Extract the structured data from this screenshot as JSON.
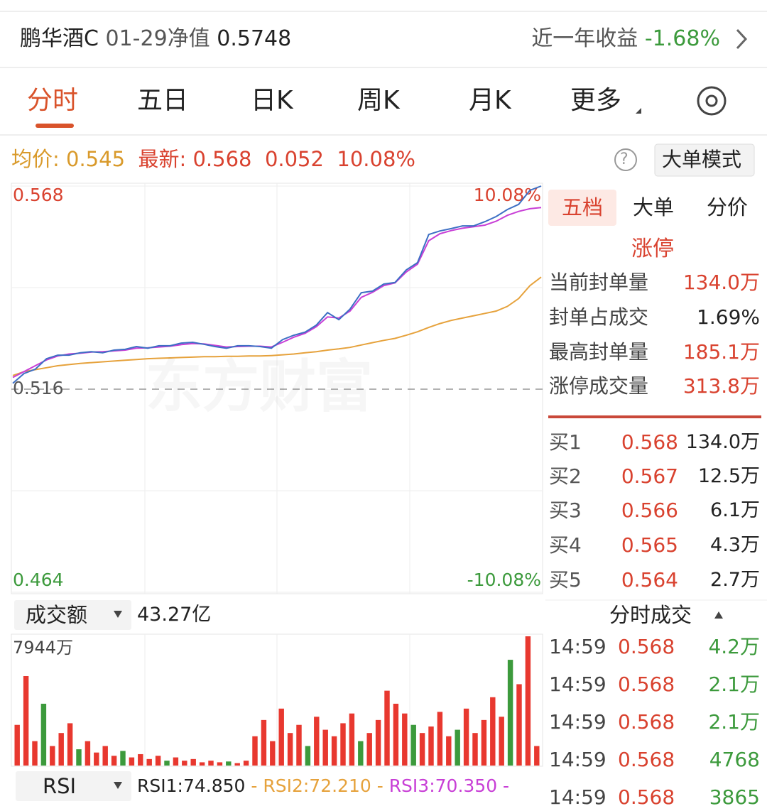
{
  "header": {
    "name": "鹏华酒C",
    "date": "01-29",
    "nav_label": "净值",
    "nav": "0.5748",
    "return_label": "近一年收益",
    "return": "-1.68%"
  },
  "tabs": [
    "分时",
    "五日",
    "日K",
    "周K",
    "月K",
    "更多"
  ],
  "stats": {
    "avg_label": "均价:",
    "avg": "0.545",
    "latest_label": "最新:",
    "latest": "0.568",
    "change": "0.052",
    "pct": "10.08%",
    "help": "?",
    "mode_button": "大单模式"
  },
  "watermark": "东方财富",
  "chart_data": [
    {
      "type": "line",
      "categories": [
        null,
        null,
        null,
        null,
        null,
        null,
        null,
        null,
        null,
        null,
        null,
        null,
        null,
        null,
        null,
        null,
        null,
        null,
        null,
        null,
        null,
        null,
        null,
        null,
        null,
        null,
        null,
        null,
        null,
        null,
        null,
        null,
        null,
        null,
        null,
        null,
        null,
        null,
        null,
        null,
        null,
        null,
        null,
        null,
        null,
        null,
        null,
        null
      ],
      "series": [
        {
          "color": "#3d6fc4",
          "values": [
            0.5175,
            0.52,
            0.5211,
            0.5238,
            0.5247,
            0.5247,
            0.5253,
            0.5256,
            0.5253,
            0.526,
            0.5262,
            0.5269,
            0.5265,
            0.5271,
            0.5271,
            0.5278,
            0.528,
            0.5275,
            0.5269,
            0.5265,
            0.5271,
            0.5271,
            0.5269,
            0.5265,
            0.5287,
            0.5298,
            0.5306,
            0.5324,
            0.5356,
            0.5338,
            0.5365,
            0.5407,
            0.5411,
            0.5429,
            0.5433,
            0.5465,
            0.5484,
            0.5556,
            0.5565,
            0.5571,
            0.5578,
            0.5578,
            0.5589,
            0.5602,
            0.562,
            0.5633,
            0.5669,
            0.568
          ]
        },
        {
          "color": "#c83fd6",
          "values": [
            0.519,
            0.5205,
            0.522,
            0.5235,
            0.5245,
            0.525,
            0.5252,
            0.5255,
            0.5256,
            0.5258,
            0.526,
            0.5265,
            0.5266,
            0.5268,
            0.527,
            0.5274,
            0.5277,
            0.5276,
            0.5272,
            0.5268,
            0.5269,
            0.527,
            0.527,
            0.5268,
            0.528,
            0.5293,
            0.5303,
            0.532,
            0.5345,
            0.5342,
            0.536,
            0.5395,
            0.5408,
            0.5425,
            0.5432,
            0.546,
            0.548,
            0.554,
            0.5558,
            0.5566,
            0.5572,
            0.5576,
            0.558,
            0.559,
            0.5605,
            0.5615,
            0.5622,
            0.5625
          ]
        },
        {
          "color": "#e6a23c",
          "values": [
            0.5195,
            0.5205,
            0.521,
            0.5215,
            0.522,
            0.5223,
            0.5226,
            0.5228,
            0.523,
            0.5232,
            0.5234,
            0.5236,
            0.5238,
            0.5239,
            0.524,
            0.5241,
            0.5242,
            0.5243,
            0.5243,
            0.5244,
            0.5244,
            0.5245,
            0.5245,
            0.5246,
            0.5248,
            0.525,
            0.5253,
            0.5256,
            0.526,
            0.5263,
            0.5267,
            0.5273,
            0.5279,
            0.5285,
            0.529,
            0.5298,
            0.5307,
            0.5318,
            0.5328,
            0.5336,
            0.5342,
            0.5348,
            0.5354,
            0.536,
            0.5372,
            0.5392,
            0.5425,
            0.5447
          ]
        }
      ],
      "ylim": [
        0.464,
        0.568
      ],
      "yticks": [
        0.568,
        0.516,
        0.464
      ],
      "y2lim": [
        -10.08,
        10.08
      ],
      "y2ticks": [
        {
          "value": 10.08,
          "label": "10.08%"
        },
        {
          "value": -10.08,
          "label": "-10.08%"
        }
      ]
    },
    {
      "type": "bar",
      "values": [
        2500,
        5500,
        1500,
        3800,
        1200,
        2000,
        2600,
        1000,
        1500,
        800,
        1200,
        600,
        900,
        500,
        700,
        400,
        600,
        300,
        500,
        300,
        400,
        200,
        300,
        200,
        250,
        150,
        300,
        1800,
        2800,
        1500,
        3500,
        2000,
        2500,
        1200,
        3000,
        2200,
        1800,
        2600,
        3200,
        1500,
        2000,
        2800,
        4600,
        3800,
        3200,
        2500,
        2000,
        2400,
        3300,
        1800,
        2200,
        3500,
        2000,
        2800,
        4200,
        3000,
        6500,
        5000,
        7944,
        1200
      ],
      "colors": [
        "#e8382f",
        "#e8382f",
        "#e8382f",
        "#3c9a3c",
        "#e8382f",
        "#e8382f",
        "#e8382f",
        "#3c9a3c",
        "#e8382f",
        "#e8382f",
        "#e8382f",
        "#e8382f",
        "#3c9a3c",
        "#e8382f",
        "#e8382f",
        "#e8382f",
        "#e8382f",
        "#3c9a3c",
        "#e8382f",
        "#e8382f",
        "#e8382f",
        "#e8382f",
        "#e8382f",
        "#e8382f",
        "#3c9a3c",
        "#e8382f",
        "#e8382f",
        "#e8382f",
        "#e8382f",
        "#e8382f",
        "#e8382f",
        "#e8382f",
        "#e8382f",
        "#3c9a3c",
        "#e8382f",
        "#e8382f",
        "#e8382f",
        "#e8382f",
        "#e8382f",
        "#3c9a3c",
        "#e8382f",
        "#e8382f",
        "#e8382f",
        "#e8382f",
        "#e8382f",
        "#3c9a3c",
        "#e8382f",
        "#e8382f",
        "#e8382f",
        "#e8382f",
        "#3c9a3c",
        "#e8382f",
        "#e8382f",
        "#e8382f",
        "#e8382f",
        "#e8382f",
        "#3c9a3c",
        "#e8382f",
        "#e8382f",
        "#e8382f"
      ],
      "ylim": [
        0,
        7944
      ],
      "yticks": [
        {
          "value": 7944,
          "label": "7944万"
        }
      ]
    }
  ],
  "volume_bar": {
    "selector": "成交额",
    "total": "43.27亿"
  },
  "rsi_bar": {
    "selector": "RSI",
    "rsi1": "RSI1:74.850",
    "rsi2": "- RSI2:72.210 -",
    "rsi3": "RSI3:70.350 -"
  },
  "side_panel": {
    "tabs": [
      "五档",
      "大单",
      "分价"
    ],
    "limit_title": "涨停",
    "limit_rows": [
      [
        "当前封单量",
        "134.0万"
      ],
      [
        "封单占成交",
        "1.69%"
      ],
      [
        "最高封单量",
        "185.1万"
      ],
      [
        "涨停成交量",
        "313.8万"
      ]
    ],
    "bids": [
      [
        "买1",
        "0.568",
        "134.0万"
      ],
      [
        "买2",
        "0.567",
        "12.5万"
      ],
      [
        "买3",
        "0.566",
        "6.1万"
      ],
      [
        "买4",
        "0.565",
        "4.3万"
      ],
      [
        "买5",
        "0.564",
        "2.7万"
      ]
    ],
    "trades_title": "分时成交",
    "trades": [
      [
        "14:59",
        "0.568",
        "4.2万"
      ],
      [
        "14:59",
        "0.568",
        "2.1万"
      ],
      [
        "14:59",
        "0.568",
        "2.1万"
      ],
      [
        "14:59",
        "0.568",
        "4768"
      ],
      [
        "14:59",
        "0.568",
        "3865"
      ]
    ]
  }
}
